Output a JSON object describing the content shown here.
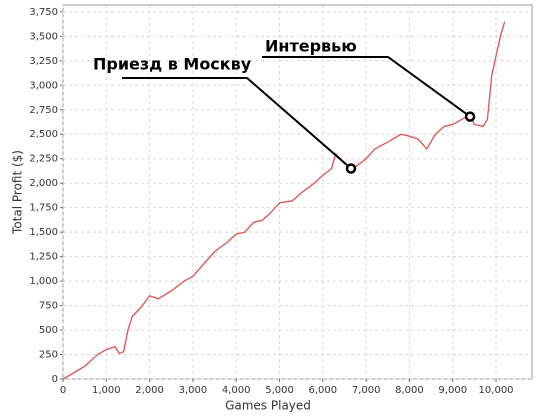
{
  "chart_data": {
    "type": "line",
    "x_label": "Games Played",
    "y_label": "Total Profit ($)",
    "x": [
      0,
      200,
      500,
      800,
      1000,
      1200,
      1300,
      1400,
      1500,
      1600,
      1800,
      2000,
      2200,
      2500,
      2800,
      3000,
      3300,
      3500,
      3800,
      4000,
      4200,
      4400,
      4600,
      4800,
      5000,
      5300,
      5500,
      5800,
      6000,
      6200,
      6300,
      6500,
      6700,
      7000,
      7200,
      7500,
      7800,
      8000,
      8200,
      8400,
      8600,
      8800,
      9000,
      9200,
      9400,
      9500,
      9700,
      9800,
      9900,
      10000,
      10100,
      10200
    ],
    "series": [
      {
        "name": "Total Profit",
        "color": "#e05a5a",
        "values": [
          0,
          50,
          130,
          250,
          300,
          330,
          260,
          280,
          500,
          640,
          730,
          850,
          820,
          900,
          1000,
          1050,
          1200,
          1300,
          1400,
          1480,
          1500,
          1600,
          1620,
          1700,
          1800,
          1820,
          1900,
          2000,
          2080,
          2150,
          2300,
          2200,
          2150,
          2250,
          2350,
          2420,
          2500,
          2480,
          2450,
          2350,
          2500,
          2580,
          2600,
          2650,
          2700,
          2600,
          2580,
          2650,
          3100,
          3300,
          3500,
          3650
        ]
      }
    ],
    "annotations": [
      {
        "text": "Приезд в Москву",
        "x": 6650,
        "y": 2150
      },
      {
        "text": "Интервью",
        "x": 9400,
        "y": 2680
      }
    ],
    "xlim": [
      0,
      10830
    ],
    "ylim": [
      0,
      3820
    ],
    "xticks": [
      0,
      {
        "value": 1000,
        "label": "1,000"
      },
      {
        "value": 2000,
        "label": "2,000"
      },
      {
        "value": 3000,
        "label": "3,000"
      },
      {
        "value": 4000,
        "label": "4,000"
      },
      {
        "value": 5000,
        "label": "5,000"
      },
      {
        "value": 6000,
        "label": "6,000"
      },
      {
        "value": 7000,
        "label": "7,000"
      },
      {
        "value": 8000,
        "label": "8,000"
      },
      {
        "value": 9000,
        "label": "9,000"
      },
      {
        "value": 10000,
        "label": "10,000"
      }
    ],
    "yticks": [
      0,
      250,
      500,
      750,
      {
        "value": 1000,
        "label": "1,000"
      },
      {
        "value": 1250,
        "label": "1,250"
      },
      {
        "value": 1500,
        "label": "1,500"
      },
      {
        "value": 1750,
        "label": "1,750"
      },
      {
        "value": 2000,
        "label": "2,000"
      },
      {
        "value": 2250,
        "label": "2,250"
      },
      {
        "value": 2500,
        "label": "2,500"
      },
      {
        "value": 2750,
        "label": "2,750"
      },
      {
        "value": 3000,
        "label": "3,000"
      },
      {
        "value": 3250,
        "label": "3,250"
      },
      {
        "value": 3500,
        "label": "3,500"
      },
      {
        "value": 3750,
        "label": "3,750"
      }
    ],
    "grid": true
  }
}
